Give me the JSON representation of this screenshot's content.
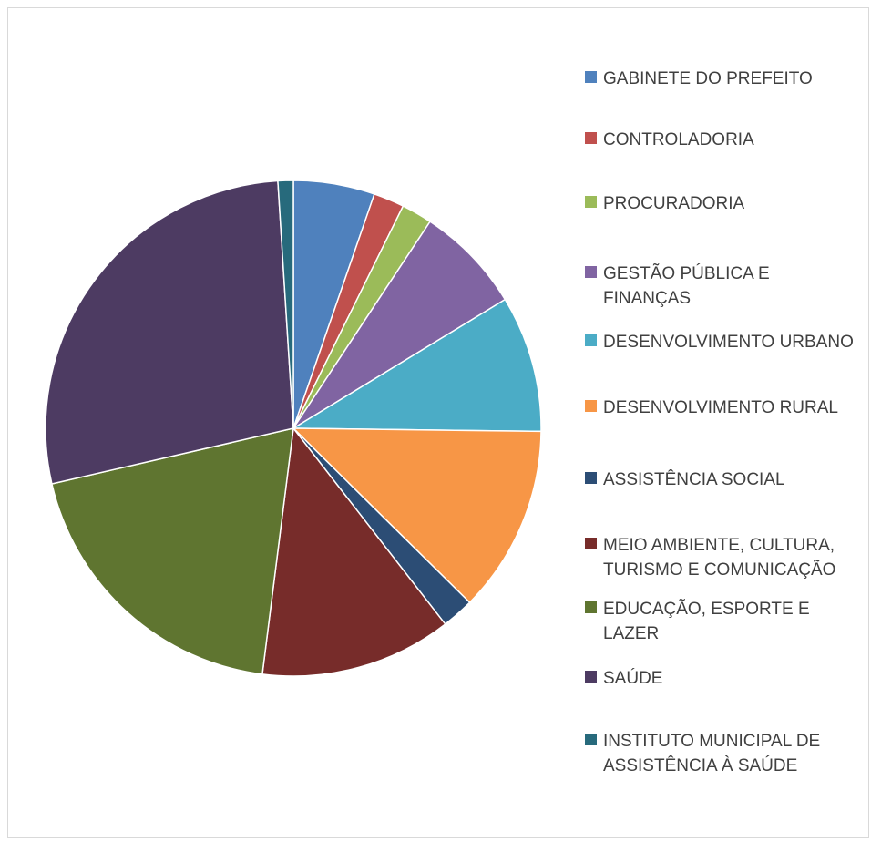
{
  "chart_data": {
    "type": "pie",
    "title": "",
    "legend_position": "right",
    "start_angle_deg": 0,
    "direction": "clockwise",
    "slices": [
      {
        "label": "GABINETE DO PREFEITO",
        "value": 5.3,
        "color": "#4f81bd"
      },
      {
        "label": "CONTROLADORIA",
        "value": 2.0,
        "color": "#c0504d"
      },
      {
        "label": "PROCURADORIA",
        "value": 2.0,
        "color": "#9bbb59"
      },
      {
        "label": "GESTÃO PÚBLICA E FINANÇAS",
        "value": 7.0,
        "color": "#8064a2"
      },
      {
        "label": "DESENVOLVIMENTO URBANO",
        "value": 8.9,
        "color": "#4bacc6"
      },
      {
        "label": "DESENVOLVIMENTO RURAL",
        "value": 12.2,
        "color": "#f79646"
      },
      {
        "label": "ASSISTÊNCIA SOCIAL",
        "value": 2.1,
        "color": "#2c4d75"
      },
      {
        "label": "MEIO AMBIENTE, CULTURA, TURISMO E COMUNICAÇÃO",
        "value": 12.5,
        "color": "#772c2a"
      },
      {
        "label": "EDUCAÇÃO, ESPORTE E LAZER",
        "value": 19.4,
        "color": "#5f7530"
      },
      {
        "label": "SAÚDE",
        "value": 27.6,
        "color": "#4d3b62"
      },
      {
        "label": "INSTITUTO MUNICIPAL DE ASSISTÊNCIA À SAÚDE",
        "value": 1.0,
        "color": "#276a7c"
      }
    ]
  }
}
